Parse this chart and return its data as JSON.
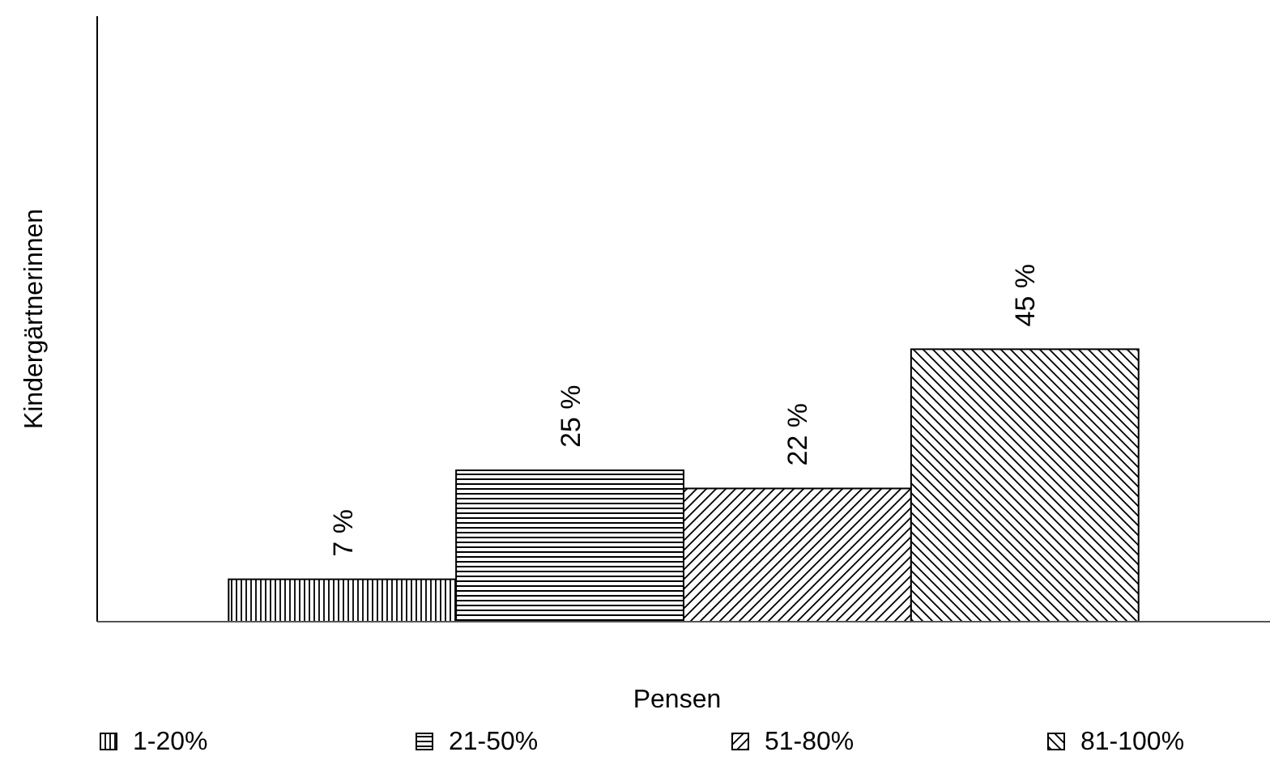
{
  "chart_data": {
    "type": "bar",
    "xlabel": "Pensen",
    "ylabel": "Kindergärtnerinnen",
    "categories": [
      null
    ],
    "ylim": [
      0,
      100
    ],
    "legend": "bottom",
    "series": [
      {
        "name": "1-20%",
        "color": "#000000",
        "values": [
          7
        ],
        "value_labels": [
          "7 %"
        ]
      },
      {
        "name": "21-50%",
        "color": "#000000",
        "values": [
          25
        ],
        "value_labels": [
          "25 %"
        ]
      },
      {
        "name": "51-80%",
        "color": "#000000",
        "values": [
          22
        ],
        "value_labels": [
          "22 %"
        ]
      },
      {
        "name": "81-100%",
        "color": "#000000",
        "values": [
          45
        ],
        "value_labels": [
          "45 %"
        ]
      }
    ]
  }
}
